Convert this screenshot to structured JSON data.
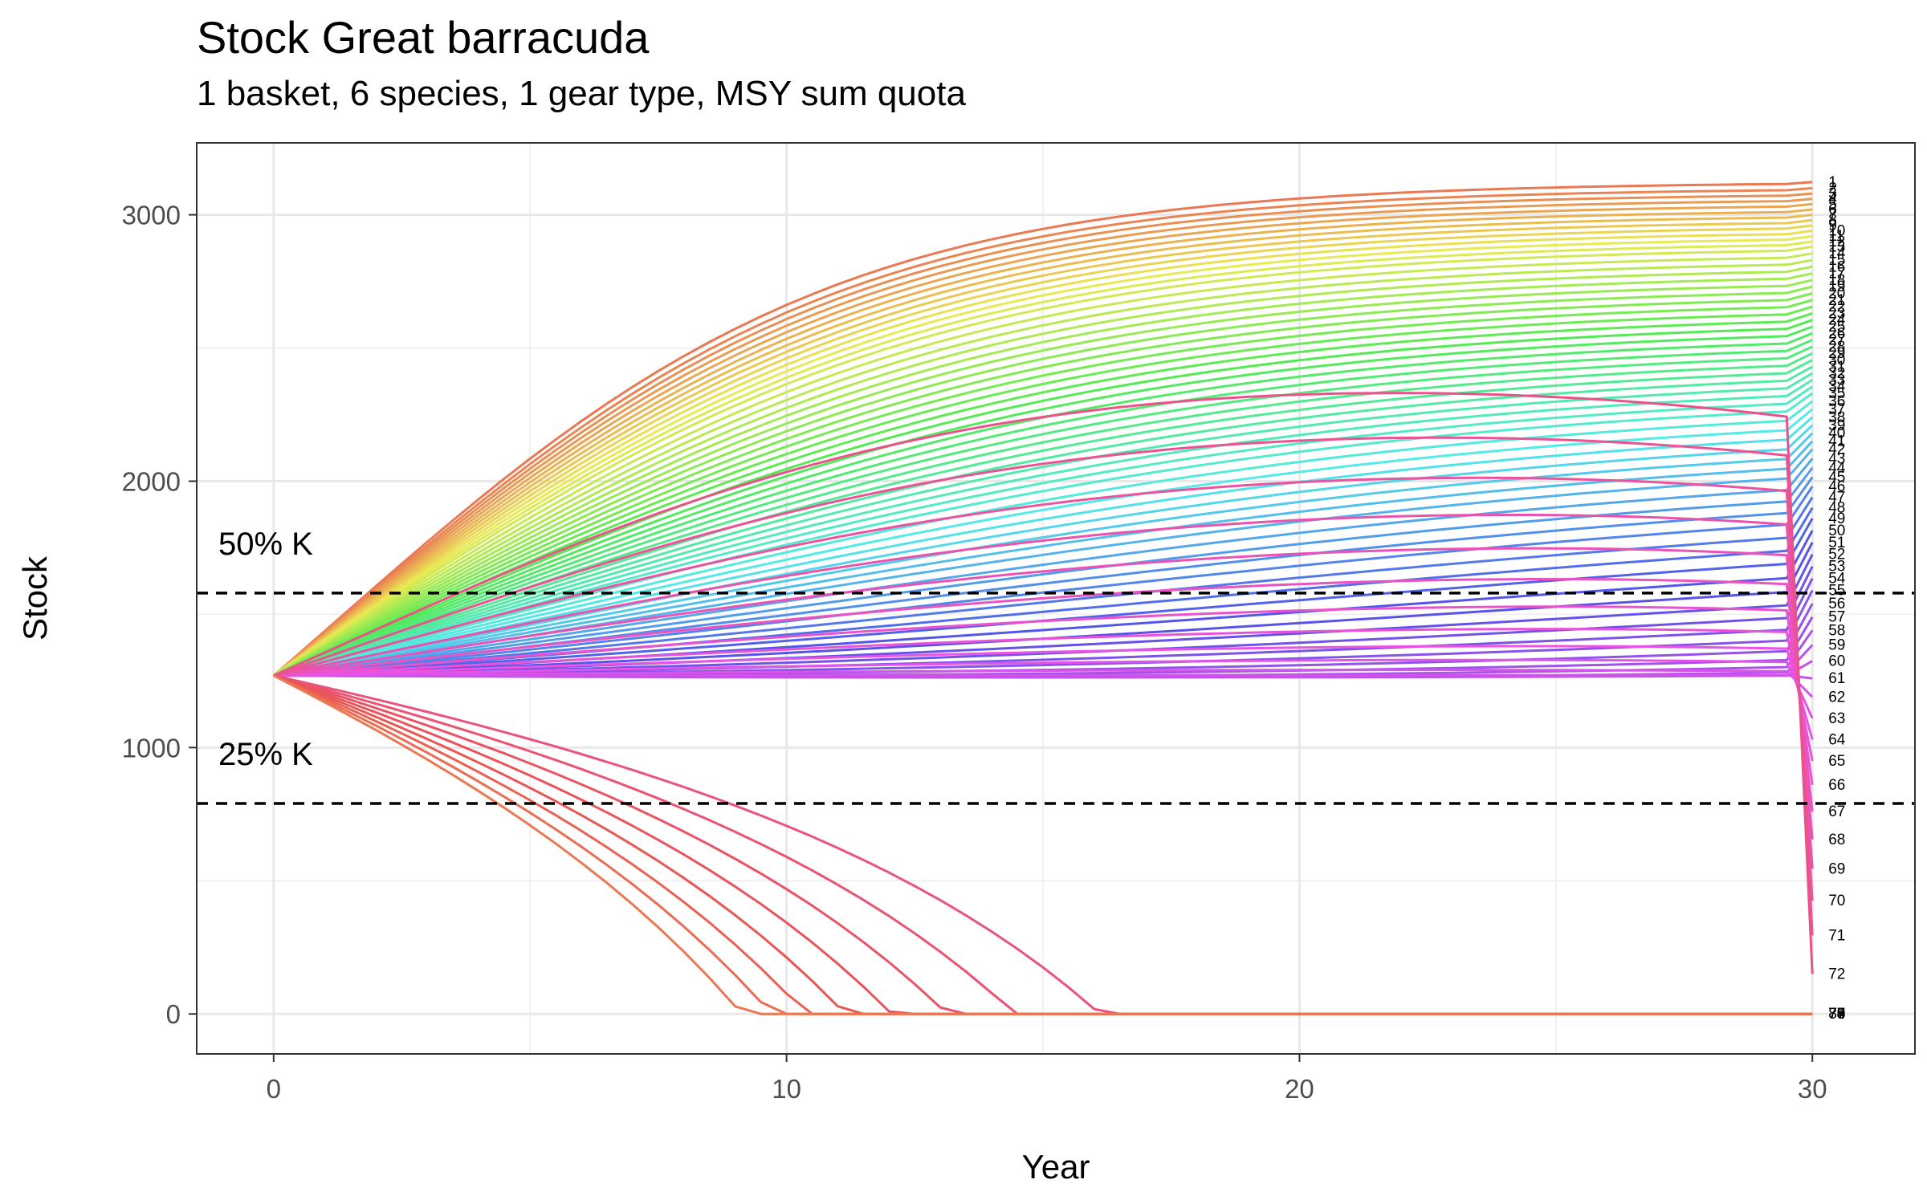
{
  "chart_data": {
    "type": "line",
    "title": "Stock Great barracuda",
    "subtitle": "1 basket, 6 species, 1 gear type, MSY sum quota",
    "xlabel": "Year",
    "ylabel": "Stock",
    "xlim": [
      -1.5,
      32
    ],
    "ylim": [
      -150,
      3270
    ],
    "x_ticks": [
      0,
      10,
      20,
      30
    ],
    "y_ticks": [
      0,
      1000,
      2000,
      3000
    ],
    "grid": true,
    "legend": "none",
    "start": {
      "year": 0,
      "stock": 1270
    },
    "carrying_capacity": 3160,
    "reference_lines": [
      {
        "label": "50% K",
        "value": 1580,
        "style": "dashed"
      },
      {
        "label": "25% K",
        "value": 790,
        "style": "dashed"
      }
    ],
    "series_count": 80,
    "series_end_label_prefix": "",
    "series_end_values_year30": [
      3123,
      3100,
      3080,
      3060,
      3040,
      3020,
      3000,
      2980,
      2960,
      2940,
      2920,
      2900,
      2880,
      2855,
      2830,
      2805,
      2780,
      2755,
      2730,
      2705,
      2680,
      2655,
      2630,
      2605,
      2580,
      2555,
      2530,
      2505,
      2480,
      2455,
      2430,
      2405,
      2380,
      2355,
      2330,
      2300,
      2270,
      2240,
      2210,
      2180,
      2150,
      2120,
      2085,
      2050,
      2015,
      1980,
      1940,
      1900,
      1860,
      1815,
      1770,
      1725,
      1680,
      1635,
      1590,
      1540,
      1490,
      1440,
      1385,
      1325,
      1260,
      1190,
      1110,
      1030,
      950,
      860,
      760,
      655,
      545,
      425,
      295,
      150,
      0,
      0,
      0,
      0,
      0,
      0,
      0,
      0
    ],
    "series_colors": {
      "first": "#F8766D",
      "green": "#00BA38",
      "blue": "#00A9FF",
      "magenta": "#F564E3",
      "last": "#F8766D"
    }
  }
}
